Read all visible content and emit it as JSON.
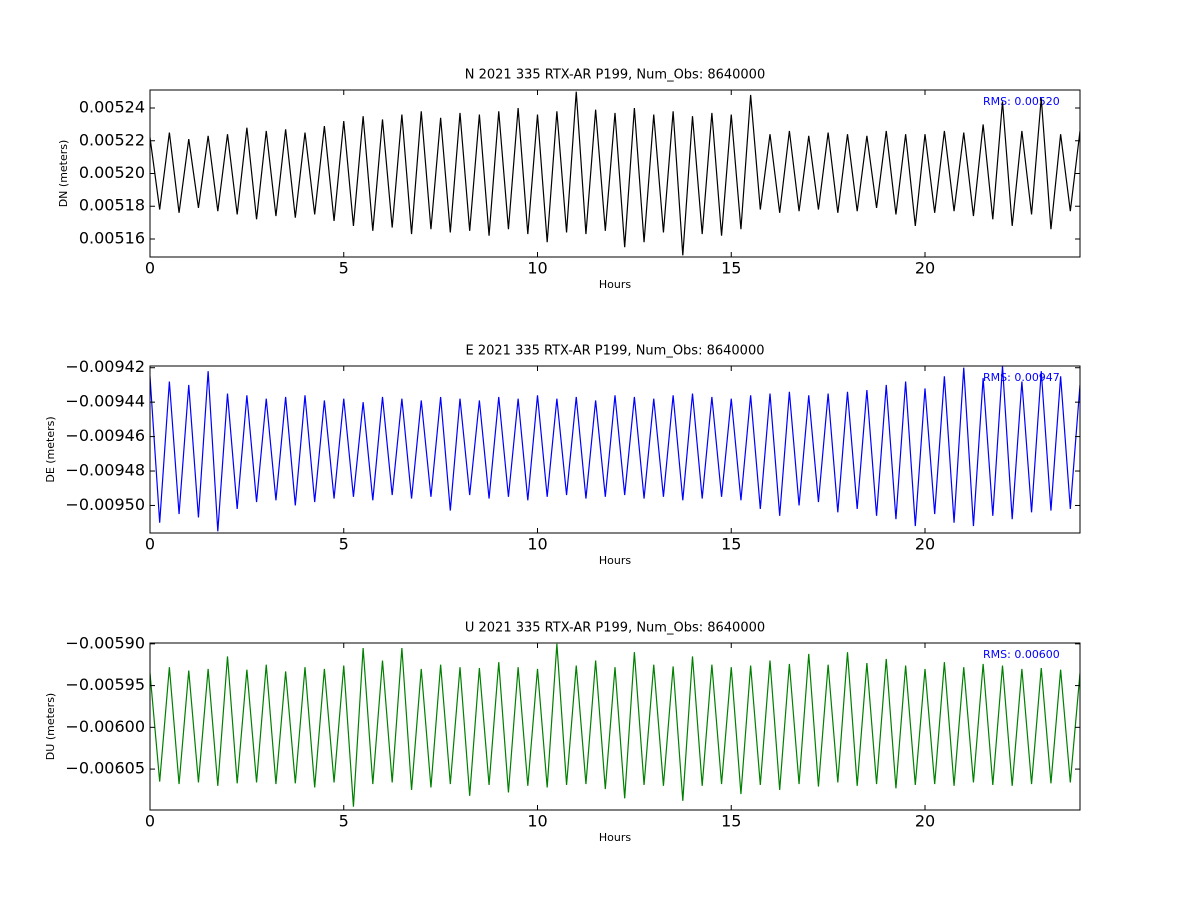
{
  "chart_data": [
    {
      "type": "line",
      "title": "N 2021 335 RTX-AR  P199, Num_Obs: 8640000",
      "xlabel": "Hours",
      "ylabel": "DN (meters)",
      "annotation": "RMS:  0.00520",
      "color": "#000000",
      "xlim": [
        0,
        24
      ],
      "xticks": [
        0,
        5,
        10,
        15,
        20
      ],
      "ylim": [
        0.005149,
        0.005251
      ],
      "yticks": [
        0.00516,
        0.00518,
        {
          "value": 0.0052,
          "label": "0.00520"
        },
        0.00522,
        0.00524
      ],
      "x": [
        0,
        0.25,
        0.5,
        0.75,
        1,
        1.25,
        1.5,
        1.75,
        2,
        2.25,
        2.5,
        2.75,
        3,
        3.25,
        3.5,
        3.75,
        4,
        4.25,
        4.5,
        4.75,
        5,
        5.25,
        5.5,
        5.75,
        6,
        6.25,
        6.5,
        6.75,
        7,
        7.25,
        7.5,
        7.75,
        8,
        8.25,
        8.5,
        8.75,
        9,
        9.25,
        9.5,
        9.75,
        10,
        10.25,
        10.5,
        10.75,
        11,
        11.25,
        11.5,
        11.75,
        12,
        12.25,
        12.5,
        12.75,
        13,
        13.25,
        13.5,
        13.75,
        14,
        14.25,
        14.5,
        14.75,
        15,
        15.25,
        15.5,
        15.75,
        16,
        16.25,
        16.5,
        16.75,
        17,
        17.25,
        17.5,
        17.75,
        18,
        18.25,
        18.5,
        18.75,
        19,
        19.25,
        19.5,
        19.75,
        20,
        20.25,
        20.5,
        20.75,
        21,
        21.25,
        21.5,
        21.75,
        22,
        22.25,
        22.5,
        22.75,
        23,
        23.25,
        23.5,
        23.75,
        24
      ],
      "values": [
        0.005222,
        0.005178,
        0.005225,
        0.005176,
        0.005221,
        0.005179,
        0.005223,
        0.005177,
        0.005224,
        0.005175,
        0.005228,
        0.005172,
        0.005226,
        0.005174,
        0.005227,
        0.005173,
        0.005225,
        0.005175,
        0.005229,
        0.005171,
        0.005232,
        0.005168,
        0.005235,
        0.005165,
        0.005233,
        0.005167,
        0.005236,
        0.005163,
        0.005238,
        0.005166,
        0.005234,
        0.005164,
        0.005237,
        0.005165,
        0.005236,
        0.005162,
        0.005238,
        0.005166,
        0.00524,
        0.005163,
        0.005236,
        0.005158,
        0.005238,
        0.005164,
        0.00525,
        0.005163,
        0.005239,
        0.005165,
        0.005237,
        0.005155,
        0.00524,
        0.005158,
        0.005236,
        0.005164,
        0.005238,
        0.00515,
        0.005235,
        0.005163,
        0.005237,
        0.005162,
        0.005236,
        0.005166,
        0.005248,
        0.005178,
        0.005224,
        0.005176,
        0.005226,
        0.005177,
        0.005223,
        0.005178,
        0.005225,
        0.005176,
        0.005224,
        0.005177,
        0.005223,
        0.005179,
        0.005226,
        0.005175,
        0.005224,
        0.005168,
        0.005224,
        0.005176,
        0.005226,
        0.005177,
        0.005225,
        0.005174,
        0.00523,
        0.005172,
        0.005244,
        0.005168,
        0.005226,
        0.005175,
        0.005246,
        0.005166,
        0.005224,
        0.005177,
        0.005226
      ]
    },
    {
      "type": "line",
      "title": "E 2021 335 RTX-AR  P199, Num_Obs: 8640000",
      "xlabel": "Hours",
      "ylabel": "DE (meters)",
      "annotation": "RMS:  0.00947",
      "color": "#0000ff",
      "xlim": [
        0,
        24
      ],
      "xticks": [
        0,
        5,
        10,
        15,
        20
      ],
      "ylim": [
        -0.009516,
        -0.009419
      ],
      "yticks": [
        {
          "value": -0.0095,
          "label": "−0.00950"
        },
        {
          "value": -0.00948,
          "label": "−0.00948"
        },
        {
          "value": -0.00946,
          "label": "−0.00946"
        },
        {
          "value": -0.00944,
          "label": "−0.00944"
        },
        {
          "value": -0.00942,
          "label": "−0.00942"
        }
      ],
      "x": [
        0,
        0.25,
        0.5,
        0.75,
        1,
        1.25,
        1.5,
        1.75,
        2,
        2.25,
        2.5,
        2.75,
        3,
        3.25,
        3.5,
        3.75,
        4,
        4.25,
        4.5,
        4.75,
        5,
        5.25,
        5.5,
        5.75,
        6,
        6.25,
        6.5,
        6.75,
        7,
        7.25,
        7.5,
        7.75,
        8,
        8.25,
        8.5,
        8.75,
        9,
        9.25,
        9.5,
        9.75,
        10,
        10.25,
        10.5,
        10.75,
        11,
        11.25,
        11.5,
        11.75,
        12,
        12.25,
        12.5,
        12.75,
        13,
        13.25,
        13.5,
        13.75,
        14,
        14.25,
        14.5,
        14.75,
        15,
        15.25,
        15.5,
        15.75,
        16,
        16.25,
        16.5,
        16.75,
        17,
        17.25,
        17.5,
        17.75,
        18,
        18.25,
        18.5,
        18.75,
        19,
        19.25,
        19.5,
        19.75,
        20,
        20.25,
        20.5,
        20.75,
        21,
        21.25,
        21.5,
        21.75,
        22,
        22.25,
        22.5,
        22.75,
        23,
        23.25,
        23.5,
        23.75,
        24
      ],
      "values": [
        -0.009425,
        -0.00951,
        -0.009428,
        -0.009505,
        -0.00943,
        -0.009507,
        -0.009422,
        -0.009515,
        -0.009435,
        -0.009502,
        -0.009436,
        -0.009498,
        -0.009438,
        -0.009497,
        -0.009437,
        -0.0095,
        -0.009436,
        -0.009498,
        -0.009439,
        -0.009496,
        -0.009438,
        -0.009495,
        -0.00944,
        -0.009497,
        -0.009437,
        -0.009494,
        -0.009438,
        -0.009496,
        -0.009439,
        -0.009495,
        -0.009437,
        -0.009503,
        -0.009438,
        -0.009494,
        -0.009439,
        -0.009496,
        -0.009437,
        -0.009495,
        -0.009438,
        -0.009497,
        -0.009436,
        -0.009495,
        -0.009438,
        -0.009494,
        -0.009437,
        -0.009496,
        -0.009439,
        -0.009495,
        -0.009436,
        -0.009494,
        -0.009437,
        -0.009496,
        -0.009438,
        -0.009495,
        -0.009436,
        -0.009497,
        -0.009435,
        -0.009496,
        -0.009437,
        -0.009495,
        -0.009438,
        -0.009497,
        -0.009436,
        -0.009502,
        -0.009435,
        -0.009506,
        -0.009434,
        -0.0095,
        -0.009436,
        -0.009498,
        -0.009435,
        -0.009504,
        -0.009434,
        -0.009502,
        -0.009433,
        -0.009506,
        -0.00943,
        -0.009508,
        -0.009428,
        -0.009512,
        -0.009432,
        -0.009505,
        -0.009425,
        -0.00951,
        -0.00942,
        -0.009512,
        -0.009426,
        -0.009506,
        -0.009419,
        -0.009508,
        -0.009428,
        -0.009504,
        -0.009422,
        -0.009503,
        -0.009425,
        -0.009502,
        -0.00943
      ]
    },
    {
      "type": "line",
      "title": "U 2021 335 RTX-AR  P199, Num_Obs: 8640000",
      "xlabel": "Hours",
      "ylabel": "DU (meters)",
      "annotation": "RMS:  0.00600",
      "color": "#008000",
      "xlim": [
        0,
        24
      ],
      "xticks": [
        0,
        5,
        10,
        15,
        20
      ],
      "ylim": [
        -0.006099,
        -0.005899
      ],
      "yticks": [
        {
          "value": -0.00605,
          "label": "−0.00605"
        },
        {
          "value": -0.006,
          "label": "−0.00600"
        },
        {
          "value": -0.00595,
          "label": "−0.00595"
        },
        {
          "value": -0.0059,
          "label": "−0.00590"
        }
      ],
      "x": [
        0,
        0.25,
        0.5,
        0.75,
        1,
        1.25,
        1.5,
        1.75,
        2,
        2.25,
        2.5,
        2.75,
        3,
        3.25,
        3.5,
        3.75,
        4,
        4.25,
        4.5,
        4.75,
        5,
        5.25,
        5.5,
        5.75,
        6,
        6.25,
        6.5,
        6.75,
        7,
        7.25,
        7.5,
        7.75,
        8,
        8.25,
        8.5,
        8.75,
        9,
        9.25,
        9.5,
        9.75,
        10,
        10.25,
        10.5,
        10.75,
        11,
        11.25,
        11.5,
        11.75,
        12,
        12.25,
        12.5,
        12.75,
        13,
        13.25,
        13.5,
        13.75,
        14,
        14.25,
        14.5,
        14.75,
        15,
        15.25,
        15.5,
        15.75,
        16,
        16.25,
        16.5,
        16.75,
        17,
        17.25,
        17.5,
        17.75,
        18,
        18.25,
        18.5,
        18.75,
        19,
        19.25,
        19.5,
        19.75,
        20,
        20.25,
        20.5,
        20.75,
        21,
        21.25,
        21.5,
        21.75,
        22,
        22.25,
        22.5,
        22.75,
        23,
        23.25,
        23.5,
        23.75,
        24
      ],
      "values": [
        -0.005935,
        -0.006065,
        -0.005928,
        -0.006068,
        -0.005932,
        -0.006066,
        -0.00593,
        -0.00607,
        -0.005915,
        -0.006067,
        -0.005931,
        -0.006066,
        -0.005925,
        -0.006068,
        -0.005933,
        -0.006067,
        -0.005928,
        -0.006072,
        -0.00593,
        -0.006066,
        -0.005926,
        -0.006095,
        -0.005905,
        -0.006068,
        -0.00592,
        -0.006066,
        -0.005905,
        -0.006075,
        -0.00593,
        -0.006072,
        -0.005925,
        -0.006068,
        -0.005928,
        -0.006082,
        -0.005929,
        -0.006069,
        -0.005922,
        -0.006078,
        -0.005928,
        -0.00607,
        -0.00593,
        -0.006072,
        -0.0059,
        -0.006069,
        -0.005926,
        -0.006068,
        -0.00592,
        -0.006074,
        -0.005928,
        -0.006085,
        -0.00591,
        -0.006069,
        -0.005925,
        -0.00607,
        -0.005927,
        -0.006088,
        -0.005915,
        -0.00607,
        -0.005925,
        -0.006068,
        -0.005928,
        -0.00608,
        -0.005926,
        -0.006069,
        -0.00592,
        -0.006075,
        -0.005924,
        -0.006068,
        -0.005912,
        -0.006071,
        -0.005925,
        -0.006066,
        -0.00591,
        -0.00607,
        -0.005923,
        -0.006068,
        -0.005918,
        -0.006073,
        -0.005926,
        -0.006069,
        -0.00593,
        -0.006068,
        -0.005922,
        -0.00607,
        -0.005928,
        -0.006066,
        -0.005924,
        -0.006069,
        -0.005926,
        -0.00607,
        -0.00593,
        -0.006068,
        -0.005929,
        -0.006067,
        -0.005931,
        -0.006066,
        -0.005935
      ]
    }
  ]
}
